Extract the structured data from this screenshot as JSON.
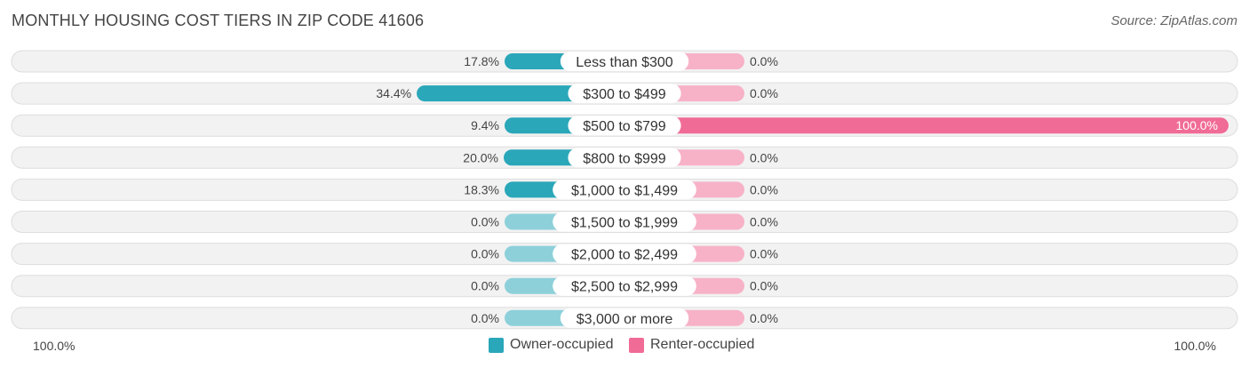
{
  "header": {
    "title": "MONTHLY HOUSING COST TIERS IN ZIP CODE 41606",
    "source": "Source: ZipAtlas.com"
  },
  "colors": {
    "owner": "#2aa7b9",
    "owner_light": "#8dd0da",
    "renter": "#f06b96",
    "renter_light": "#f7b2c8",
    "row_bg": "#f2f2f2",
    "row_border": "#dddddd"
  },
  "chart_data": {
    "type": "bar",
    "orientation": "diverging-horizontal",
    "categories": [
      "Less than $300",
      "$300 to $499",
      "$500 to $799",
      "$800 to $999",
      "$1,000 to $1,499",
      "$1,500 to $1,999",
      "$2,000 to $2,499",
      "$2,500 to $2,999",
      "$3,000 or more"
    ],
    "series": [
      {
        "name": "Owner-occupied",
        "values": [
          17.8,
          34.4,
          9.4,
          20.0,
          18.3,
          0.0,
          0.0,
          0.0,
          0.0
        ],
        "labels": [
          "17.8%",
          "34.4%",
          "9.4%",
          "20.0%",
          "18.3%",
          "0.0%",
          "0.0%",
          "0.0%",
          "0.0%"
        ]
      },
      {
        "name": "Renter-occupied",
        "values": [
          0.0,
          0.0,
          100.0,
          0.0,
          0.0,
          0.0,
          0.0,
          0.0,
          0.0
        ],
        "labels": [
          "0.0%",
          "0.0%",
          "100.0%",
          "0.0%",
          "0.0%",
          "0.0%",
          "0.0%",
          "0.0%",
          "0.0%"
        ]
      }
    ],
    "axis": {
      "left_label": "100.0%",
      "right_label": "100.0%",
      "max": 100
    },
    "legend": {
      "position": "bottom-center",
      "items": [
        "Owner-occupied",
        "Renter-occupied"
      ]
    }
  }
}
